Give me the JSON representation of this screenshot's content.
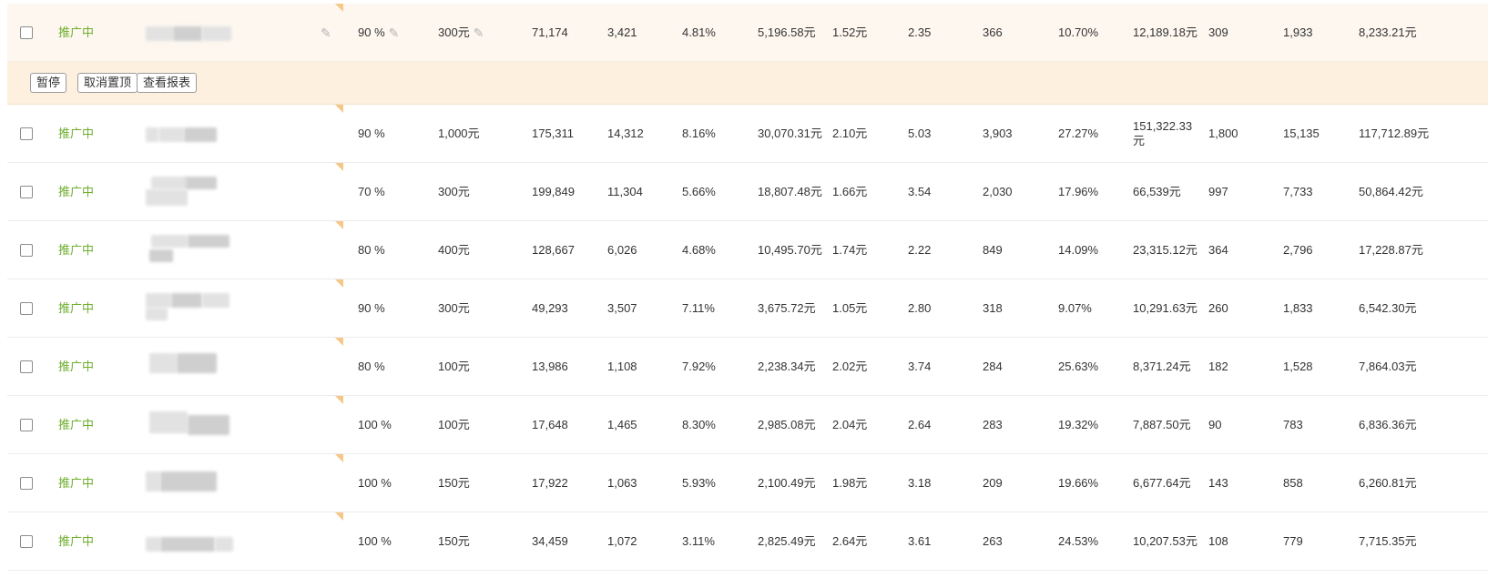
{
  "actions": {
    "pause": "暂停",
    "unpin": "取消置顶",
    "report": "查看报表"
  },
  "icons": {
    "edit": "pencil-icon"
  },
  "colors": {
    "status": "#6fae2e",
    "selected_row_bg": "#fdf7f0",
    "action_bar_bg": "#fdf0df",
    "corner_marker": "#f5c88a"
  },
  "rows": [
    {
      "status": "推广中",
      "ratio": "90 %",
      "budget": "300元",
      "c1": "71,174",
      "c2": "3,421",
      "c3": "4.81%",
      "c4": "5,196.58元",
      "c5": "1.52元",
      "c6": "2.35",
      "c7": "366",
      "c8": "10.70%",
      "c9": "12,189.18元",
      "c10": "309",
      "c11": "1,933",
      "c12": "8,233.21元"
    },
    {
      "status": "推广中",
      "ratio": "90 %",
      "budget": "1,000元",
      "c1": "175,311",
      "c2": "14,312",
      "c3": "8.16%",
      "c4": "30,070.31元",
      "c5": "2.10元",
      "c6": "5.03",
      "c7": "3,903",
      "c8": "27.27%",
      "c9": "151,322.33元",
      "c10": "1,800",
      "c11": "15,135",
      "c12": "117,712.89元"
    },
    {
      "status": "推广中",
      "ratio": "70 %",
      "budget": "300元",
      "c1": "199,849",
      "c2": "11,304",
      "c3": "5.66%",
      "c4": "18,807.48元",
      "c5": "1.66元",
      "c6": "3.54",
      "c7": "2,030",
      "c8": "17.96%",
      "c9": "66,539元",
      "c10": "997",
      "c11": "7,733",
      "c12": "50,864.42元"
    },
    {
      "status": "推广中",
      "ratio": "80 %",
      "budget": "400元",
      "c1": "128,667",
      "c2": "6,026",
      "c3": "4.68%",
      "c4": "10,495.70元",
      "c5": "1.74元",
      "c6": "2.22",
      "c7": "849",
      "c8": "14.09%",
      "c9": "23,315.12元",
      "c10": "364",
      "c11": "2,796",
      "c12": "17,228.87元"
    },
    {
      "status": "推广中",
      "ratio": "90 %",
      "budget": "300元",
      "c1": "49,293",
      "c2": "3,507",
      "c3": "7.11%",
      "c4": "3,675.72元",
      "c5": "1.05元",
      "c6": "2.80",
      "c7": "318",
      "c8": "9.07%",
      "c9": "10,291.63元",
      "c10": "260",
      "c11": "1,833",
      "c12": "6,542.30元"
    },
    {
      "status": "推广中",
      "ratio": "80 %",
      "budget": "100元",
      "c1": "13,986",
      "c2": "1,108",
      "c3": "7.92%",
      "c4": "2,238.34元",
      "c5": "2.02元",
      "c6": "3.74",
      "c7": "284",
      "c8": "25.63%",
      "c9": "8,371.24元",
      "c10": "182",
      "c11": "1,528",
      "c12": "7,864.03元"
    },
    {
      "status": "推广中",
      "ratio": "100 %",
      "budget": "100元",
      "c1": "17,648",
      "c2": "1,465",
      "c3": "8.30%",
      "c4": "2,985.08元",
      "c5": "2.04元",
      "c6": "2.64",
      "c7": "283",
      "c8": "19.32%",
      "c9": "7,887.50元",
      "c10": "90",
      "c11": "783",
      "c12": "6,836.36元"
    },
    {
      "status": "推广中",
      "ratio": "100 %",
      "budget": "150元",
      "c1": "17,922",
      "c2": "1,063",
      "c3": "5.93%",
      "c4": "2,100.49元",
      "c5": "1.98元",
      "c6": "3.18",
      "c7": "209",
      "c8": "19.66%",
      "c9": "6,677.64元",
      "c10": "143",
      "c11": "858",
      "c12": "6,260.81元"
    },
    {
      "status": "推广中",
      "ratio": "100 %",
      "budget": "150元",
      "c1": "34,459",
      "c2": "1,072",
      "c3": "3.11%",
      "c4": "2,825.49元",
      "c5": "2.64元",
      "c6": "3.61",
      "c7": "263",
      "c8": "24.53%",
      "c9": "10,207.53元",
      "c10": "108",
      "c11": "779",
      "c12": "7,715.35元"
    }
  ]
}
